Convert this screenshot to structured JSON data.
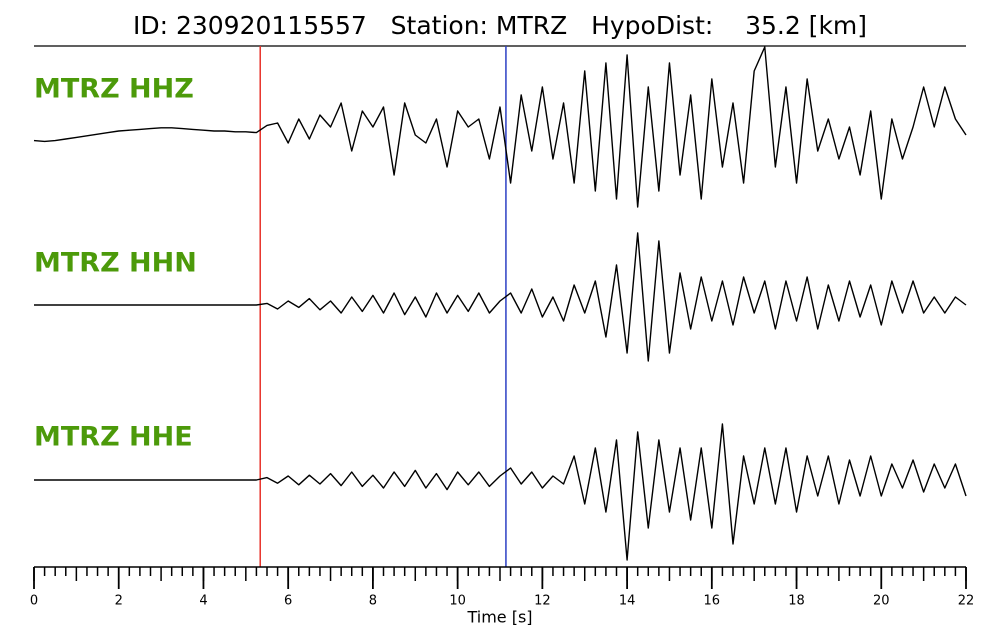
{
  "chart_data": {
    "type": "line",
    "title": "ID: 230920115557   Station: MTRZ   HypoDist:    35.2 [km]",
    "xlabel": "Time [s]",
    "xlim": [
      0,
      22
    ],
    "xticks": [
      0,
      2,
      4,
      6,
      8,
      10,
      12,
      14,
      16,
      18,
      20,
      22
    ],
    "xminor": 0.25,
    "label_color": "#4c9a0a",
    "markers": [
      {
        "x": 5.34,
        "color": "#e8322a"
      },
      {
        "x": 11.14,
        "color": "#2c3fc4"
      }
    ],
    "x": [
      0,
      0.25,
      0.5,
      0.75,
      1,
      1.25,
      1.5,
      1.75,
      2,
      2.25,
      2.5,
      2.75,
      3,
      3.25,
      3.5,
      3.75,
      4,
      4.25,
      4.5,
      4.75,
      5,
      5.25,
      5.5,
      5.75,
      6,
      6.25,
      6.5,
      6.75,
      7,
      7.25,
      7.5,
      7.75,
      8,
      8.25,
      8.5,
      8.75,
      9,
      9.25,
      9.5,
      9.75,
      10,
      10.25,
      10.5,
      10.75,
      11,
      11.25,
      11.5,
      11.75,
      12,
      12.25,
      12.5,
      12.75,
      13,
      13.25,
      13.5,
      13.75,
      14,
      14.25,
      14.5,
      14.75,
      15,
      15.25,
      15.5,
      15.75,
      16,
      16.25,
      16.5,
      16.75,
      17,
      17.25,
      17.5,
      17.75,
      18,
      18.25,
      18.5,
      18.75,
      19,
      19.25,
      19.5,
      19.75,
      20,
      20.25,
      20.5,
      20.75,
      21,
      21.25,
      21.5,
      21.75,
      22
    ],
    "series": [
      {
        "name": "MTRZ HHZ",
        "color": "#000000",
        "values": [
          -0.07,
          -0.08,
          -0.07,
          -0.05,
          -0.03,
          -0.01,
          0.01,
          0.03,
          0.05,
          0.06,
          0.07,
          0.08,
          0.09,
          0.09,
          0.08,
          0.07,
          0.06,
          0.05,
          0.05,
          0.04,
          0.04,
          0.03,
          0.12,
          0.15,
          -0.1,
          0.2,
          -0.05,
          0.25,
          0.1,
          0.4,
          -0.2,
          0.3,
          0.1,
          0.35,
          -0.5,
          0.4,
          0.0,
          -0.1,
          0.2,
          -0.4,
          0.3,
          0.1,
          0.2,
          -0.3,
          0.35,
          -0.6,
          0.5,
          -0.2,
          0.6,
          -0.3,
          0.4,
          -0.6,
          0.8,
          -0.7,
          0.9,
          -0.8,
          1.0,
          -0.9,
          0.6,
          -0.7,
          0.9,
          -0.5,
          0.5,
          -0.8,
          0.7,
          -0.4,
          0.4,
          -0.6,
          0.8,
          1.1,
          -0.4,
          0.6,
          -0.6,
          0.7,
          -0.2,
          0.2,
          -0.3,
          0.1,
          -0.5,
          0.3,
          -0.8,
          0.2,
          -0.3,
          0.1,
          0.6,
          0.1,
          0.6,
          0.2,
          0.0
        ]
      },
      {
        "name": "MTRZ HHN",
        "color": "#000000",
        "values": [
          0,
          0,
          0,
          0,
          0,
          0,
          0,
          0,
          0,
          0,
          0,
          0,
          0,
          0,
          0,
          0,
          0,
          0,
          0,
          0,
          0,
          0,
          0.02,
          -0.05,
          0.05,
          -0.03,
          0.08,
          -0.06,
          0.05,
          -0.1,
          0.1,
          -0.08,
          0.12,
          -0.1,
          0.15,
          -0.12,
          0.1,
          -0.15,
          0.15,
          -0.1,
          0.12,
          -0.08,
          0.15,
          -0.1,
          0.05,
          0.15,
          -0.1,
          0.2,
          -0.15,
          0.1,
          -0.2,
          0.25,
          -0.1,
          0.3,
          -0.4,
          0.5,
          -0.6,
          0.9,
          -0.7,
          0.8,
          -0.6,
          0.4,
          -0.3,
          0.35,
          -0.2,
          0.3,
          -0.25,
          0.35,
          -0.1,
          0.3,
          -0.3,
          0.3,
          -0.2,
          0.35,
          -0.3,
          0.25,
          -0.2,
          0.3,
          -0.15,
          0.25,
          -0.25,
          0.3,
          -0.1,
          0.3,
          -0.1,
          0.1,
          -0.1,
          0.1,
          0.0
        ]
      },
      {
        "name": "MTRZ HHE",
        "color": "#000000",
        "values": [
          0,
          0,
          0,
          0,
          0,
          0,
          0,
          0,
          0,
          0,
          0,
          0,
          0,
          0,
          0,
          0,
          0,
          0,
          0,
          0,
          0,
          0,
          0.03,
          -0.04,
          0.05,
          -0.06,
          0.06,
          -0.05,
          0.08,
          -0.07,
          0.1,
          -0.08,
          0.06,
          -0.1,
          0.1,
          -0.08,
          0.12,
          -0.1,
          0.08,
          -0.12,
          0.1,
          -0.06,
          0.1,
          -0.08,
          0.05,
          0.15,
          -0.05,
          0.1,
          -0.1,
          0.05,
          -0.05,
          0.3,
          -0.3,
          0.4,
          -0.4,
          0.5,
          -1.0,
          0.6,
          -0.6,
          0.5,
          -0.4,
          0.4,
          -0.5,
          0.4,
          -0.6,
          0.7,
          -0.8,
          0.3,
          -0.3,
          0.4,
          -0.3,
          0.4,
          -0.4,
          0.3,
          -0.2,
          0.3,
          -0.3,
          0.25,
          -0.2,
          0.3,
          -0.2,
          0.2,
          -0.1,
          0.25,
          -0.15,
          0.2,
          -0.1,
          0.2,
          -0.2
        ]
      }
    ]
  }
}
